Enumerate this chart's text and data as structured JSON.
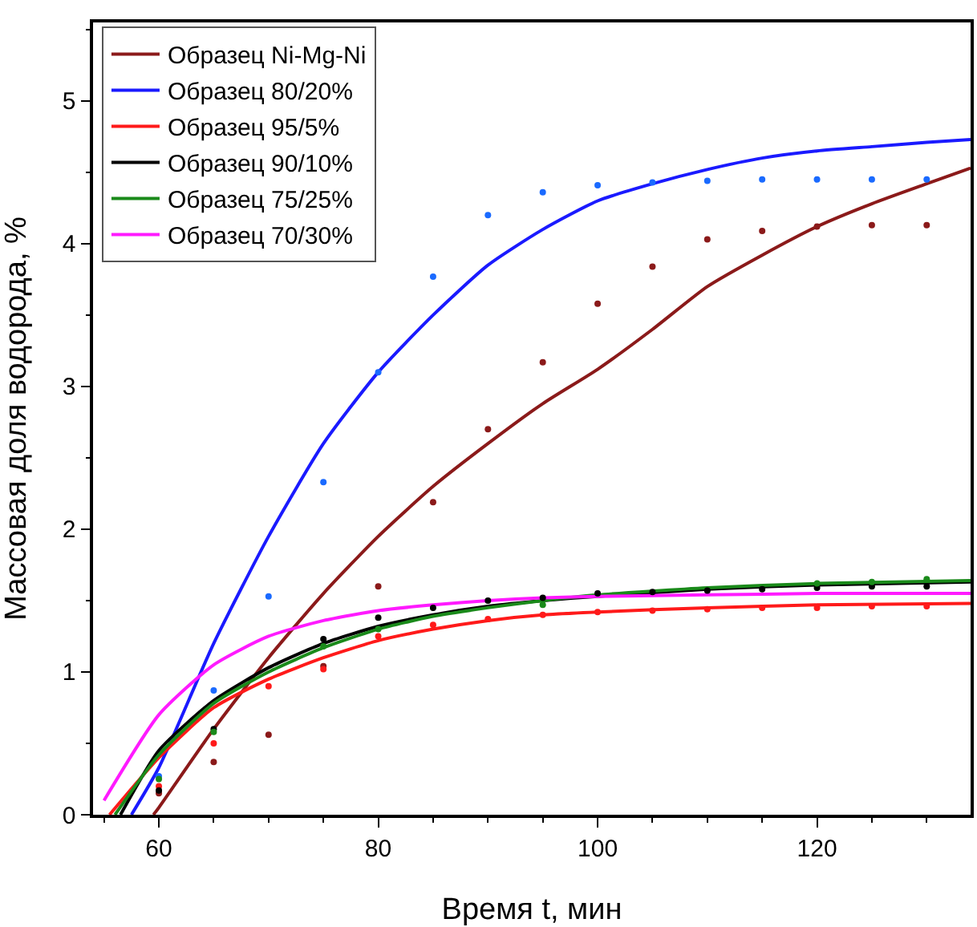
{
  "chart_data": {
    "type": "line",
    "xlabel": "Время t, мин",
    "ylabel": "Массовая доля водорода, %",
    "xlim": [
      54,
      134
    ],
    "xticks": [
      60,
      80,
      100,
      120
    ],
    "ylim": [
      0,
      5.55
    ],
    "yticks": [
      0,
      1,
      2,
      3,
      4,
      5
    ],
    "grid": false,
    "legend": "top left",
    "line_style": "solid",
    "series": [
      {
        "name": "Образец Ni-Mg-Ni",
        "color": "#8b1a1a",
        "marker": "none",
        "x": [
          59.5,
          60,
          65,
          70,
          75,
          80,
          85,
          90,
          95,
          100,
          105,
          110,
          115,
          120,
          125,
          130,
          134
        ],
        "values": [
          0,
          0.05,
          0.6,
          1.1,
          1.55,
          1.95,
          2.3,
          2.6,
          2.88,
          3.12,
          3.4,
          3.7,
          3.92,
          4.12,
          4.28,
          4.42,
          4.53
        ]
      },
      {
        "name": "Образец 80/20%",
        "color": "#1a1aff",
        "marker": "none",
        "x": [
          57.5,
          60,
          65,
          70,
          75,
          80,
          85,
          90,
          95,
          100,
          105,
          110,
          115,
          120,
          125,
          130,
          134
        ],
        "values": [
          0,
          0.33,
          1.2,
          1.95,
          2.6,
          3.1,
          3.5,
          3.85,
          4.1,
          4.3,
          4.42,
          4.52,
          4.6,
          4.65,
          4.68,
          4.71,
          4.73
        ]
      },
      {
        "name": "Образец 95/5%",
        "color": "#ff1a1a",
        "marker": "none",
        "x": [
          55.5,
          60,
          65,
          70,
          75,
          80,
          85,
          90,
          95,
          100,
          110,
          120,
          134
        ],
        "values": [
          0,
          0.4,
          0.75,
          0.95,
          1.1,
          1.22,
          1.3,
          1.36,
          1.4,
          1.42,
          1.45,
          1.47,
          1.48
        ]
      },
      {
        "name": "Образец 90/10%",
        "color": "#000000",
        "marker": "none",
        "x": [
          56.5,
          60,
          65,
          70,
          75,
          80,
          85,
          90,
          95,
          100,
          110,
          120,
          134
        ],
        "values": [
          0,
          0.45,
          0.8,
          1.03,
          1.2,
          1.32,
          1.4,
          1.46,
          1.5,
          1.53,
          1.58,
          1.61,
          1.63
        ]
      },
      {
        "name": "Образец 75/25%",
        "color": "#1a8a1a",
        "marker": "none",
        "x": [
          56,
          60,
          65,
          70,
          75,
          80,
          85,
          90,
          95,
          100,
          110,
          120,
          134
        ],
        "values": [
          0,
          0.42,
          0.78,
          1.0,
          1.17,
          1.3,
          1.39,
          1.45,
          1.5,
          1.54,
          1.59,
          1.62,
          1.64
        ]
      },
      {
        "name": "Образец 70/30%",
        "color": "#ff1aff",
        "marker": "none",
        "x": [
          55,
          60,
          65,
          70,
          75,
          80,
          85,
          90,
          95,
          100,
          110,
          120,
          134
        ],
        "values": [
          0.1,
          0.7,
          1.05,
          1.25,
          1.36,
          1.43,
          1.47,
          1.5,
          1.52,
          1.53,
          1.54,
          1.55,
          1.55
        ]
      },
      {
        "type": "scatter",
        "color": "#1a6aff",
        "marker": "circle",
        "x": [
          60,
          65,
          70,
          75,
          80,
          85,
          90,
          95,
          100,
          105,
          110,
          115,
          120,
          125,
          130
        ],
        "values": [
          0.27,
          0.87,
          1.53,
          2.33,
          3.1,
          3.77,
          4.2,
          4.36,
          4.41,
          4.43,
          4.44,
          4.45,
          4.45,
          4.45,
          4.45
        ]
      },
      {
        "type": "scatter",
        "color": "#8b1a1a",
        "marker": "circle",
        "x": [
          60,
          65,
          70,
          75,
          80,
          85,
          90,
          95,
          100,
          105,
          110,
          115,
          120,
          125,
          130
        ],
        "values": [
          0.15,
          0.37,
          0.56,
          1.04,
          1.6,
          2.19,
          2.7,
          3.17,
          3.58,
          3.84,
          4.03,
          4.09,
          4.12,
          4.13,
          4.13
        ]
      },
      {
        "type": "scatter",
        "color": "#ff1a1a",
        "marker": "circle",
        "x": [
          60,
          65,
          70,
          75,
          80,
          85,
          90,
          95,
          100,
          105,
          110,
          115,
          120,
          125,
          130
        ],
        "values": [
          0.2,
          0.5,
          0.9,
          1.02,
          1.25,
          1.33,
          1.37,
          1.4,
          1.42,
          1.43,
          1.44,
          1.45,
          1.45,
          1.46,
          1.46
        ]
      },
      {
        "type": "scatter",
        "color": "#000000",
        "marker": "circle",
        "x": [
          60,
          65,
          75,
          80,
          85,
          90,
          95,
          100,
          105,
          110,
          115,
          120,
          125,
          130
        ],
        "values": [
          0.17,
          0.6,
          1.23,
          1.38,
          1.45,
          1.5,
          1.52,
          1.55,
          1.56,
          1.57,
          1.58,
          1.59,
          1.6,
          1.6
        ]
      },
      {
        "type": "scatter",
        "color": "#1a8a1a",
        "marker": "circle",
        "x": [
          60,
          65,
          75,
          80,
          95,
          120,
          125,
          130
        ],
        "values": [
          0.25,
          0.58,
          1.18,
          1.3,
          1.47,
          1.62,
          1.63,
          1.65
        ]
      }
    ]
  }
}
